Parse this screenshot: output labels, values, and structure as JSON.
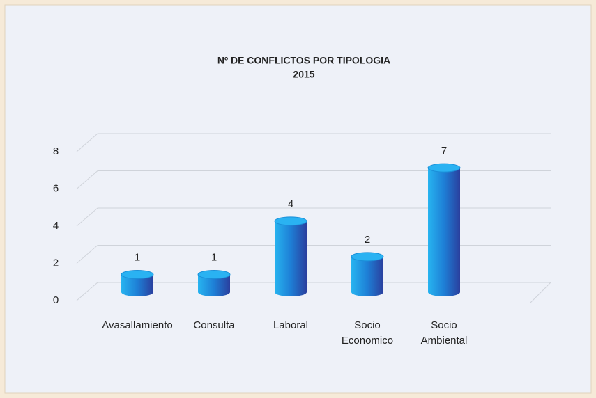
{
  "chart_data": {
    "type": "bar",
    "title": "Nº DE CONFLICTOS POR TIPOLOGIA",
    "subtitle": "2015",
    "categories": [
      "Avasallamiento",
      "Consulta",
      "Laboral",
      "Socio Economico",
      "Socio Ambiental"
    ],
    "values": [
      1,
      1,
      4,
      2,
      7
    ],
    "color": "#1e7fd6",
    "ylim": [
      0,
      8
    ],
    "yticks": [
      0,
      2,
      4,
      6,
      8
    ],
    "grid": true
  }
}
